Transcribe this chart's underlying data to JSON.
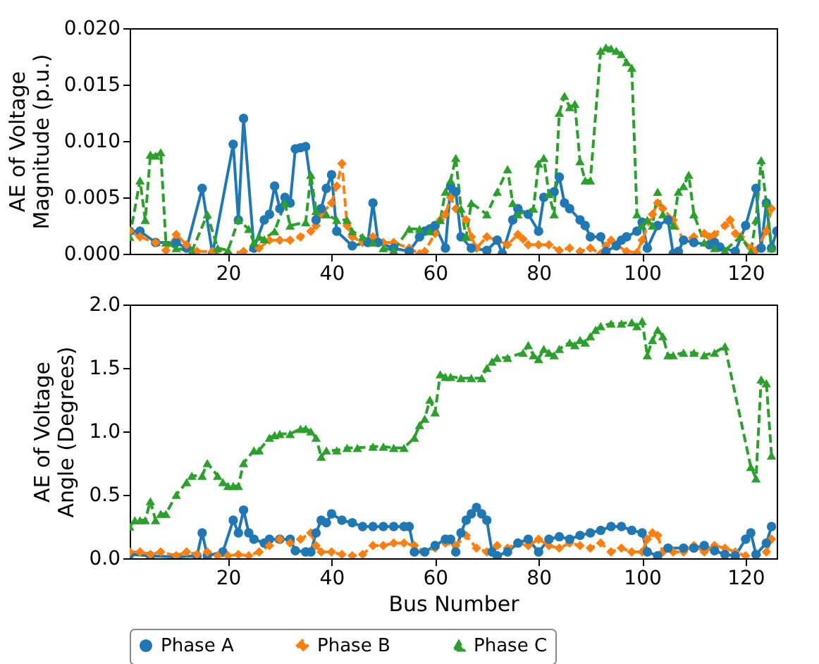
{
  "chart_data": [
    {
      "type": "line",
      "ylabel": "AE of Voltage\nMagnitude (p.u.)",
      "xlim": [
        1,
        126
      ],
      "xticks": [
        20,
        40,
        60,
        80,
        100,
        120
      ],
      "ylim": [
        0,
        0.02
      ],
      "yticks": [
        {
          "value": 0,
          "label": "0.000"
        },
        {
          "value": 0.005,
          "label": "0.005"
        },
        {
          "value": 0.01,
          "label": "0.010"
        },
        {
          "value": 0.015,
          "label": "0.015"
        },
        {
          "value": 0.02,
          "label": "0.020"
        }
      ],
      "grid": false,
      "series": [
        {
          "color": "#1f77b4",
          "marker": "circle",
          "line_style": "solid",
          "x": [
            1,
            3,
            6,
            10,
            12,
            15,
            17,
            21,
            22,
            23,
            25,
            27,
            28,
            29,
            30,
            31,
            32,
            33,
            34,
            35,
            37,
            38,
            39,
            40,
            41,
            44,
            47,
            48,
            49,
            52,
            55,
            57,
            58,
            59,
            60,
            62,
            63,
            64,
            65,
            67,
            70,
            72,
            73,
            75,
            76,
            78,
            80,
            81,
            83,
            84,
            85,
            86,
            88,
            89,
            90,
            92,
            93,
            95,
            96,
            97,
            99,
            100,
            101,
            103,
            105,
            106,
            107,
            108,
            110,
            113,
            114,
            115,
            118,
            120,
            122,
            123,
            124,
            125,
            126
          ],
          "values": [
            0.002,
            0.002,
            0.001,
            0.001,
            0.0005,
            0.0058,
            0,
            0.0097,
            0.003,
            0.012,
            0.0005,
            0.003,
            0.0035,
            0.006,
            0.004,
            0.005,
            0.0045,
            0.0093,
            0.0094,
            0.0095,
            0.003,
            0.004,
            0.0058,
            0.007,
            0.002,
            0.0007,
            0.001,
            0.0045,
            0.001,
            0.0005,
            0.0002,
            0.0015,
            0.002,
            0.0022,
            0.0025,
            0.0005,
            0.006,
            0.0055,
            0.0015,
            0.0005,
            0.0003,
            0.0012,
            0,
            0.003,
            0.004,
            0.0035,
            0.002,
            0.005,
            0.0055,
            0.0068,
            0.0045,
            0.004,
            0.003,
            0.0025,
            0.0015,
            0.0015,
            0.0002,
            0.0007,
            0.0012,
            0.0015,
            0.002,
            0.0028,
            0.0005,
            0.0025,
            0.003,
            0,
            0.0002,
            0.0012,
            0.001,
            0.0008,
            0.001,
            0.0006,
            0.0002,
            0.0025,
            0.0058,
            0.0005,
            0.0045,
            0.0005,
            0.002
          ]
        },
        {
          "color": "#ff7f0e",
          "marker": "diamond",
          "line_style": "dashed",
          "x": [
            1,
            3,
            6,
            8,
            10,
            12,
            14,
            17,
            20,
            23,
            26,
            28,
            30,
            32,
            34,
            36,
            37,
            38,
            40,
            41,
            42,
            43,
            44,
            46,
            48,
            50,
            52,
            55,
            57,
            58,
            60,
            61,
            62,
            63,
            64,
            66,
            67,
            68,
            70,
            72,
            74,
            76,
            77,
            78,
            80,
            82,
            84,
            86,
            88,
            90,
            92,
            93,
            94,
            95,
            97,
            99,
            100,
            102,
            103,
            104,
            106,
            108,
            110,
            112,
            113,
            114,
            116,
            117,
            118,
            119,
            121,
            122,
            124,
            125
          ],
          "values": [
            0.002,
            0.0015,
            0.001,
            0.0003,
            0.0017,
            0.0008,
            0.0002,
            0.0002,
            0,
            0.0002,
            0.0005,
            0.0012,
            0.0012,
            0.0012,
            0.0015,
            0.002,
            0.0025,
            0.0035,
            0.0045,
            0.006,
            0.008,
            0.0025,
            0.0015,
            0.001,
            0.0015,
            0.001,
            0.001,
            0.0005,
            0,
            0.0002,
            0.0018,
            0.003,
            0.0035,
            0.005,
            0.004,
            0.003,
            0.0015,
            0.0005,
            0.0015,
            0.0012,
            0.0008,
            0.0017,
            0.0013,
            0.0008,
            0.0008,
            0.0008,
            0.0003,
            0.0005,
            0.0002,
            0.0005,
            0,
            0.0007,
            0.0012,
            0.0008,
            0.0002,
            0.0001,
            0.0012,
            0.0035,
            0.0045,
            0.004,
            0.003,
            0.0012,
            0.0015,
            0.0018,
            0.0015,
            0.0017,
            0.0025,
            0.003,
            0.0018,
            0.0015,
            0.0005,
            0.0003,
            0.002,
            0.004
          ]
        },
        {
          "color": "#2ca02c",
          "marker": "triangle",
          "line_style": "dashed",
          "x": [
            1,
            3,
            4,
            5,
            6,
            7,
            8,
            10,
            13,
            16,
            18,
            20,
            22,
            24,
            25,
            26,
            27,
            29,
            31,
            32,
            35,
            36,
            37,
            39,
            41,
            43,
            44,
            46,
            48,
            50,
            52,
            55,
            57,
            59,
            61,
            62,
            63,
            64,
            65,
            66,
            67,
            70,
            72,
            74,
            75,
            76,
            79,
            80,
            81,
            82,
            83,
            84,
            85,
            86,
            87,
            88,
            89,
            90,
            92,
            93,
            94,
            95,
            96,
            97,
            98,
            99,
            100,
            101,
            102,
            103,
            104,
            106,
            107,
            108,
            109,
            110,
            112,
            114,
            116,
            119,
            121,
            122,
            123,
            124,
            125
          ],
          "values": [
            0.0015,
            0.0065,
            0.003,
            0.0088,
            0.0087,
            0.009,
            0.001,
            0.0005,
            0.0002,
            0.0035,
            0.0005,
            0.0003,
            0.003,
            0.0022,
            0.001,
            0.0015,
            0.0013,
            0.002,
            0.0045,
            0.0025,
            0.0028,
            0.007,
            0.0038,
            0.0035,
            0.003,
            0.003,
            0.002,
            0.0015,
            0.001,
            0.0005,
            0.0003,
            0.0022,
            0.0022,
            0.002,
            0.003,
            0.0055,
            0.0065,
            0.0085,
            0.004,
            0.0015,
            0.0045,
            0.0035,
            0.0055,
            0.0075,
            0.0045,
            0.0035,
            0.004,
            0.008,
            0.0085,
            0.0053,
            0.0035,
            0.0125,
            0.014,
            0.013,
            0.0133,
            0.0082,
            0.0065,
            0.0065,
            0.018,
            0.0183,
            0.0182,
            0.018,
            0.0177,
            0.017,
            0.0165,
            0.0035,
            0.0025,
            0.003,
            0.0025,
            0.0055,
            0.0035,
            0.0025,
            0.0055,
            0.006,
            0.007,
            0.0035,
            0.001,
            0.0005,
            0.0003,
            0.0015,
            0.0002,
            0.003,
            0.0083,
            0.0045,
            0.0005
          ]
        }
      ]
    },
    {
      "type": "line",
      "xlabel": "Bus Number",
      "ylabel": "AE of Voltage\nAngle (Degrees)",
      "xlim": [
        1,
        126
      ],
      "xticks": [
        20,
        40,
        60,
        80,
        100,
        120
      ],
      "ylim": [
        0,
        2
      ],
      "yticks": [
        {
          "value": 0,
          "label": "0.0"
        },
        {
          "value": 0.5,
          "label": "0.5"
        },
        {
          "value": 1,
          "label": "1.0"
        },
        {
          "value": 1.5,
          "label": "1.5"
        },
        {
          "value": 2,
          "label": "2.0"
        }
      ],
      "grid": false,
      "legend": "bottom",
      "series": [
        {
          "name": "Phase A",
          "color": "#1f77b4",
          "marker": "circle",
          "line_style": "solid",
          "x": [
            1,
            5,
            10,
            14,
            15,
            16,
            19,
            21,
            22,
            23,
            24,
            25,
            27,
            28,
            30,
            32,
            33,
            35,
            36,
            37,
            38,
            39,
            40,
            42,
            44,
            46,
            48,
            50,
            52,
            54,
            55,
            56,
            58,
            60,
            62,
            63,
            64,
            65,
            66,
            67,
            68,
            69,
            70,
            71,
            72,
            74,
            76,
            78,
            80,
            82,
            84,
            86,
            88,
            90,
            92,
            94,
            96,
            98,
            100,
            101,
            103,
            105,
            108,
            110,
            112,
            114,
            116,
            118,
            120,
            121,
            122,
            124,
            125
          ],
          "values": [
            0.03,
            0.02,
            0.01,
            0.02,
            0.2,
            0.02,
            0.05,
            0.3,
            0.2,
            0.38,
            0.2,
            0.15,
            0.12,
            0.15,
            0.15,
            0.15,
            0.06,
            0.05,
            0.05,
            0.2,
            0.3,
            0.28,
            0.35,
            0.3,
            0.28,
            0.25,
            0.25,
            0.25,
            0.25,
            0.25,
            0.25,
            0.05,
            0.05,
            0.1,
            0.15,
            0.15,
            0.05,
            0.2,
            0.3,
            0.35,
            0.4,
            0.35,
            0.3,
            0.05,
            0.02,
            0.05,
            0.12,
            0.15,
            0.05,
            0.15,
            0.17,
            0.15,
            0.18,
            0.2,
            0.22,
            0.25,
            0.25,
            0.22,
            0.2,
            0.05,
            0.02,
            0.08,
            0.08,
            0.08,
            0.1,
            0.06,
            0.03,
            0.02,
            0.15,
            0.2,
            0.03,
            0.12,
            0.25
          ]
        },
        {
          "name": "Phase B",
          "color": "#ff7f0e",
          "marker": "diamond",
          "line_style": "dashed",
          "x": [
            1,
            3,
            5,
            7,
            10,
            12,
            14,
            16,
            18,
            20,
            22,
            24,
            26,
            28,
            30,
            32,
            34,
            36,
            37,
            38,
            40,
            42,
            44,
            46,
            48,
            50,
            52,
            54,
            56,
            58,
            60,
            62,
            64,
            66,
            68,
            70,
            72,
            74,
            76,
            78,
            80,
            82,
            84,
            86,
            88,
            90,
            92,
            94,
            96,
            98,
            100,
            101,
            102,
            103,
            104,
            106,
            108,
            110,
            112,
            114,
            116,
            118,
            120,
            122,
            124,
            125
          ],
          "values": [
            0.05,
            0.05,
            0.03,
            0.05,
            0.02,
            0.05,
            0.03,
            0.05,
            0.02,
            0.02,
            0.03,
            0.02,
            0.05,
            0.1,
            0.15,
            0.12,
            0.15,
            0.2,
            0.1,
            0.05,
            0.05,
            0.03,
            0.02,
            0.03,
            0.1,
            0.1,
            0.12,
            0.12,
            0.1,
            0.05,
            0.08,
            0.12,
            0.1,
            0.18,
            0.08,
            0.05,
            0.1,
            0.08,
            0.12,
            0.1,
            0.15,
            0.1,
            0.08,
            0.12,
            0.1,
            0.08,
            0.12,
            0.05,
            0.08,
            0.05,
            0.05,
            0.15,
            0.2,
            0.18,
            0.05,
            0.05,
            0.05,
            0.1,
            0.05,
            0.1,
            0.08,
            0.05,
            0.02,
            0.02,
            0.05,
            0.15
          ]
        },
        {
          "name": "Phase C",
          "color": "#2ca02c",
          "marker": "triangle",
          "line_style": "dashed",
          "x": [
            1,
            2,
            3,
            4,
            5,
            6,
            7,
            8,
            10,
            12,
            13,
            15,
            16,
            18,
            19,
            20,
            21,
            22,
            23,
            25,
            26,
            28,
            29,
            30,
            32,
            34,
            35,
            36,
            37,
            38,
            39,
            41,
            43,
            45,
            48,
            50,
            52,
            54,
            56,
            57,
            58,
            59,
            60,
            61,
            62,
            63,
            65,
            67,
            69,
            70,
            71,
            72,
            74,
            77,
            78,
            79,
            80,
            81,
            82,
            83,
            84,
            86,
            87,
            88,
            89,
            90,
            91,
            92,
            94,
            96,
            98,
            99,
            100,
            101,
            102,
            103,
            104,
            105,
            106,
            108,
            110,
            112,
            114,
            116,
            121,
            122,
            123,
            124,
            125
          ],
          "values": [
            0.25,
            0.3,
            0.3,
            0.3,
            0.45,
            0.3,
            0.35,
            0.35,
            0.5,
            0.6,
            0.65,
            0.65,
            0.75,
            0.65,
            0.6,
            0.57,
            0.57,
            0.57,
            0.75,
            0.85,
            0.85,
            0.95,
            0.97,
            0.98,
            0.98,
            1.02,
            1.02,
            1.0,
            0.95,
            0.8,
            0.85,
            0.85,
            0.87,
            0.87,
            0.88,
            0.88,
            0.87,
            0.87,
            0.95,
            1.05,
            1.1,
            1.25,
            1.15,
            1.45,
            1.43,
            1.43,
            1.42,
            1.42,
            1.42,
            1.5,
            1.55,
            1.58,
            1.58,
            1.62,
            1.68,
            1.6,
            1.57,
            1.65,
            1.62,
            1.6,
            1.65,
            1.7,
            1.68,
            1.72,
            1.7,
            1.75,
            1.8,
            1.83,
            1.85,
            1.85,
            1.86,
            1.83,
            1.87,
            1.6,
            1.72,
            1.8,
            1.75,
            1.6,
            1.6,
            1.62,
            1.62,
            1.6,
            1.62,
            1.67,
            0.72,
            0.63,
            1.41,
            1.38,
            0.81
          ]
        }
      ]
    }
  ]
}
